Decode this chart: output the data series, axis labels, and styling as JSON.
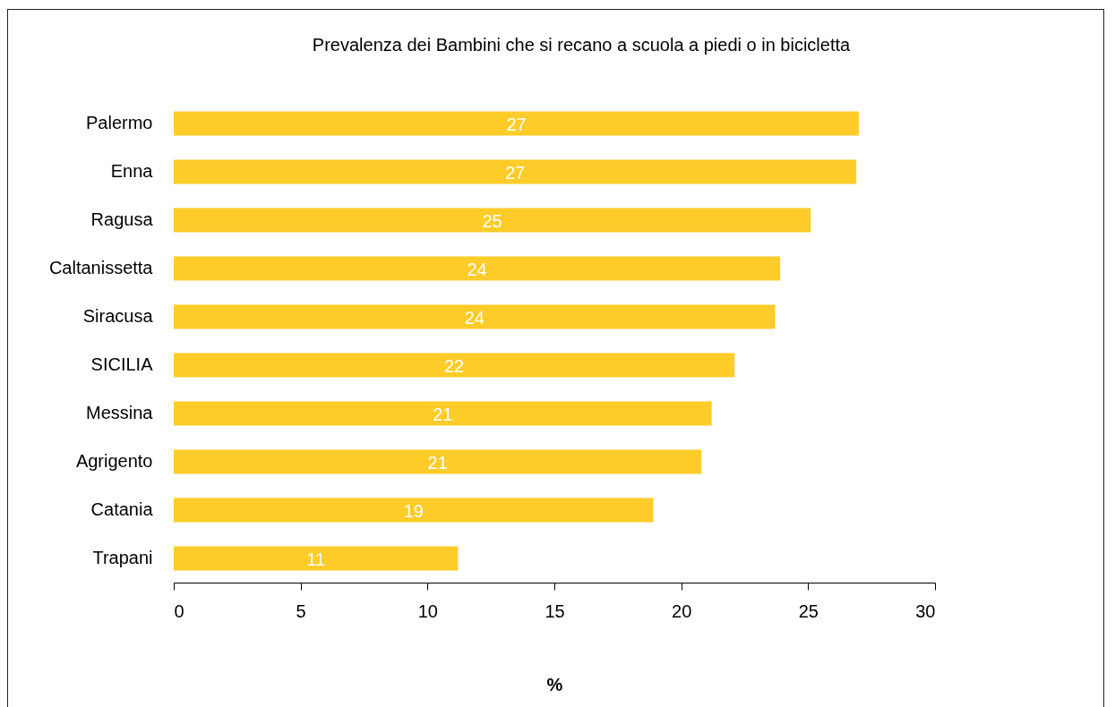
{
  "chart_data": {
    "type": "bar",
    "orientation": "horizontal",
    "title": "Prevalenza dei Bambini che si recano a scuola a piedi o in bicicletta",
    "xlabel": "%",
    "categories": [
      "Palermo",
      "Enna",
      "Ragusa",
      "Caltanissetta",
      "Siracusa",
      "SICILIA",
      "Messina",
      "Agrigento",
      "Catania",
      "Trapani"
    ],
    "values": [
      27.0,
      26.9,
      25.1,
      23.9,
      23.7,
      22.1,
      21.2,
      20.8,
      18.9,
      11.2
    ],
    "value_labels": [
      "27",
      "27",
      "25",
      "24",
      "24",
      "22",
      "21",
      "21",
      "19",
      "11"
    ],
    "color": "#ffcc29",
    "xlim": [
      0,
      30
    ],
    "xticks": [
      0,
      5,
      10,
      15,
      20,
      25,
      30
    ],
    "grid": false
  }
}
